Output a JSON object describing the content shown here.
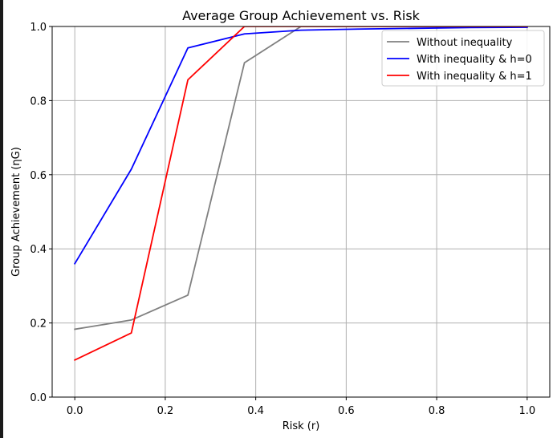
{
  "chart_data": {
    "type": "line",
    "title": "Average Group Achievement vs. Risk",
    "xlabel": "Risk (r)",
    "ylabel": "Group Achievement (ηG)",
    "xlim": [
      -0.05,
      1.05
    ],
    "ylim": [
      0.0,
      1.0
    ],
    "xticks": [
      0.0,
      0.2,
      0.4,
      0.6,
      0.8,
      1.0
    ],
    "xtick_labels": [
      "0.0",
      "0.2",
      "0.4",
      "0.6",
      "0.8",
      "1.0"
    ],
    "yticks": [
      0.0,
      0.2,
      0.4,
      0.6,
      0.8,
      1.0
    ],
    "ytick_labels": [
      "0.0",
      "0.2",
      "0.4",
      "0.6",
      "0.8",
      "1.0"
    ],
    "grid": true,
    "legend_position": "top-right",
    "x": [
      0.0,
      0.125,
      0.25,
      0.375,
      0.5,
      0.625,
      0.75,
      0.875,
      1.0
    ],
    "series": [
      {
        "name": "Without inequality",
        "color": "#808080",
        "values": [
          0.183,
          0.208,
          0.275,
          0.902,
          1.0,
          1.0,
          1.0,
          1.0,
          1.0
        ]
      },
      {
        "name": "With inequality & h=0",
        "color": "#0000ff",
        "values": [
          0.36,
          0.615,
          0.942,
          0.98,
          0.99,
          0.993,
          0.995,
          0.997,
          0.998
        ]
      },
      {
        "name": "With inequality & h=1",
        "color": "#ff0000",
        "values": [
          0.1,
          0.173,
          0.856,
          1.0,
          1.0,
          1.0,
          1.0,
          1.0,
          1.0
        ]
      }
    ]
  }
}
